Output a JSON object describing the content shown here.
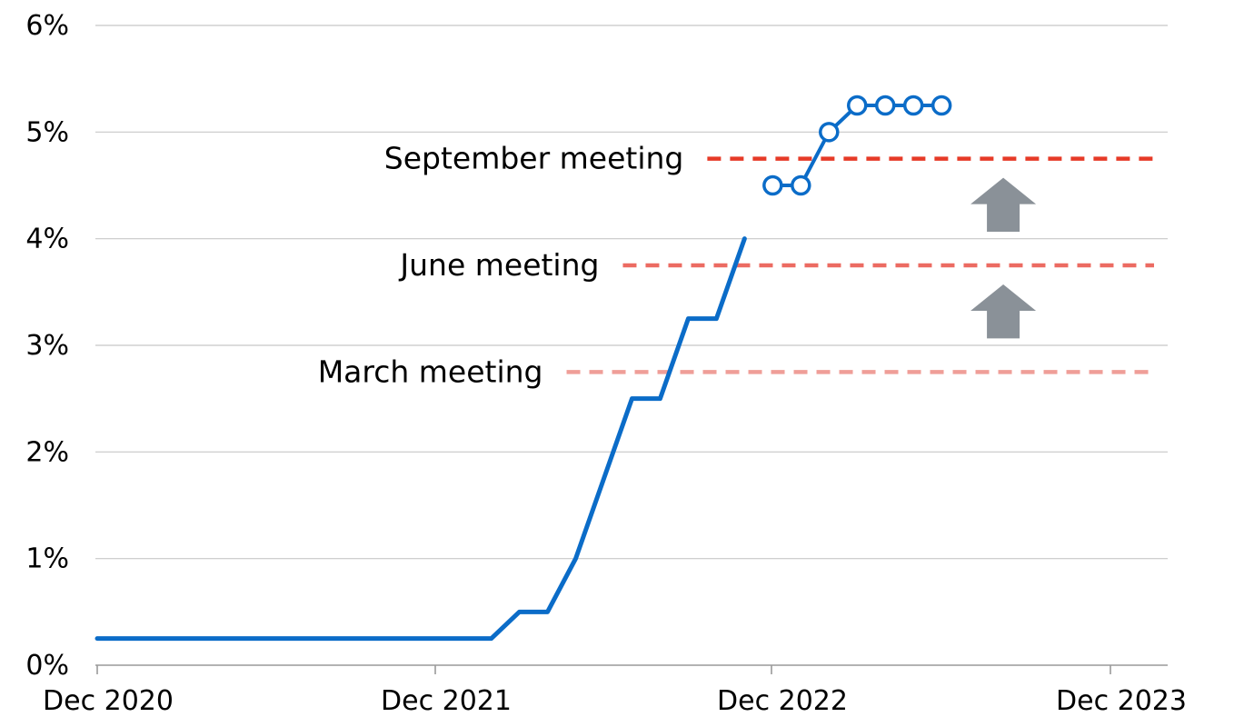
{
  "chart_data": {
    "type": "line",
    "title": "",
    "xlabel": "",
    "ylabel": "",
    "x_ticks": [
      "Dec 2020",
      "Dec 2021",
      "Dec 2022",
      "Dec 2023"
    ],
    "y_ticks": [
      "0%",
      "1%",
      "2%",
      "3%",
      "4%",
      "5%",
      "6%"
    ],
    "ylim": [
      0,
      6
    ],
    "xlim": [
      "2020-12",
      "2023-12"
    ],
    "grid": true,
    "series": [
      {
        "name": "",
        "style": "solid",
        "color": "#0b6cc8",
        "points": [
          {
            "x": "2020-12",
            "y": 0.25
          },
          {
            "x": "2021-01",
            "y": 0.25
          },
          {
            "x": "2021-02",
            "y": 0.25
          },
          {
            "x": "2021-03",
            "y": 0.25
          },
          {
            "x": "2021-04",
            "y": 0.25
          },
          {
            "x": "2021-05",
            "y": 0.25
          },
          {
            "x": "2021-06",
            "y": 0.25
          },
          {
            "x": "2021-07",
            "y": 0.25
          },
          {
            "x": "2021-08",
            "y": 0.25
          },
          {
            "x": "2021-09",
            "y": 0.25
          },
          {
            "x": "2021-10",
            "y": 0.25
          },
          {
            "x": "2021-11",
            "y": 0.25
          },
          {
            "x": "2021-12",
            "y": 0.25
          },
          {
            "x": "2022-01",
            "y": 0.25
          },
          {
            "x": "2022-02",
            "y": 0.25
          },
          {
            "x": "2022-03",
            "y": 0.5
          },
          {
            "x": "2022-04",
            "y": 0.5
          },
          {
            "x": "2022-05",
            "y": 1.0
          },
          {
            "x": "2022-06",
            "y": 1.75
          },
          {
            "x": "2022-07",
            "y": 2.5
          },
          {
            "x": "2022-08",
            "y": 2.5
          },
          {
            "x": "2022-09",
            "y": 3.25
          },
          {
            "x": "2022-10",
            "y": 3.25
          },
          {
            "x": "2022-11",
            "y": 4.0
          }
        ]
      },
      {
        "name": "",
        "style": "markers",
        "color": "#0b6cc8",
        "points": [
          {
            "x": "2022-12",
            "y": 4.5
          },
          {
            "x": "2023-01",
            "y": 4.5
          },
          {
            "x": "2023-02",
            "y": 5.0
          },
          {
            "x": "2023-03",
            "y": 5.25
          },
          {
            "x": "2023-04",
            "y": 5.25
          },
          {
            "x": "2023-05",
            "y": 5.25
          },
          {
            "x": "2023-06",
            "y": 5.25
          }
        ]
      }
    ],
    "reference_lines": [
      {
        "label": "March meeting",
        "y": 2.75,
        "x_start": "2022-05",
        "x_end": "2023-12",
        "color": "#ef9e98"
      },
      {
        "label": "June meeting",
        "y": 3.75,
        "x_start": "2022-07",
        "x_end": "2023-12",
        "color": "#ec6b62"
      },
      {
        "label": "September meeting",
        "y": 4.75,
        "x_start": "2022-10",
        "x_end": "2023-12",
        "color": "#e63a27"
      }
    ],
    "arrows": [
      {
        "from": 2.75,
        "to": 3.75,
        "x": "2023-09",
        "color": "#8a9198"
      },
      {
        "from": 3.75,
        "to": 4.75,
        "x": "2023-09",
        "color": "#8a9198"
      }
    ],
    "colors": {
      "grid": "#c8c8c8",
      "axis": "#9a9a9a",
      "line": "#0b6cc8",
      "marker_fill": "#ffffff",
      "arrow": "#8a9198"
    }
  }
}
